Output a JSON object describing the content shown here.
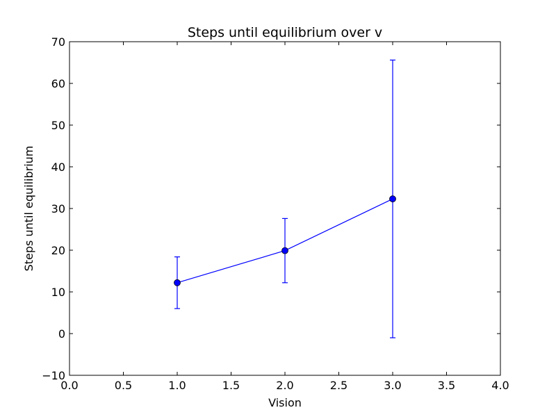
{
  "chart_data": {
    "type": "line",
    "title": "Steps until equilibrium over v",
    "xlabel": "Vision",
    "ylabel": "Steps until equilibrium",
    "xlim": [
      0.0,
      4.0
    ],
    "ylim": [
      -10,
      70
    ],
    "xticks": [
      "0.0",
      "0.5",
      "1.0",
      "1.5",
      "2.0",
      "2.5",
      "3.0",
      "3.5",
      "4.0"
    ],
    "yticks": [
      "−10",
      "0",
      "10",
      "20",
      "30",
      "40",
      "50",
      "60",
      "70"
    ],
    "grid": false,
    "line_color": "#0000ff",
    "series": [
      {
        "x": [
          1.0,
          2.0,
          3.0
        ],
        "y": [
          12.2,
          19.9,
          32.3
        ],
        "yerr_low": [
          6.0,
          12.2,
          -1.0
        ],
        "yerr_high": [
          18.4,
          27.6,
          65.6
        ]
      }
    ]
  }
}
